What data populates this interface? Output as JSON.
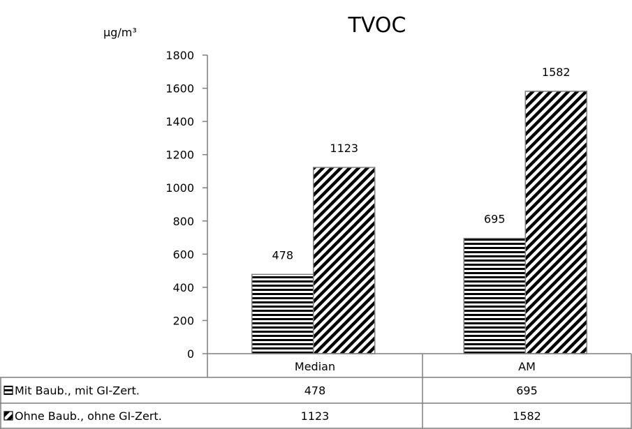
{
  "chart_data": {
    "type": "bar",
    "title": "TVOC",
    "ylabel": "µg/m³",
    "categories": [
      "Median",
      "AM"
    ],
    "series": [
      {
        "name": "Mit Baub., mit GI-Zert.",
        "values": [
          478,
          695
        ],
        "pattern": "horizontal-stripes"
      },
      {
        "name": "Ohne Baub., ohne GI-Zert.",
        "values": [
          1123,
          1582
        ],
        "pattern": "diagonal-stripes"
      }
    ],
    "ylim": [
      0,
      1800
    ],
    "yticks": [
      0,
      200,
      400,
      600,
      800,
      1000,
      1200,
      1400,
      1600,
      1800
    ],
    "grid": false,
    "legend": "data-table-below",
    "data_labels": true
  },
  "colors": {
    "bar_fill": "#000000",
    "bar_background": "#ffffff",
    "border": "#7f7f7f"
  }
}
